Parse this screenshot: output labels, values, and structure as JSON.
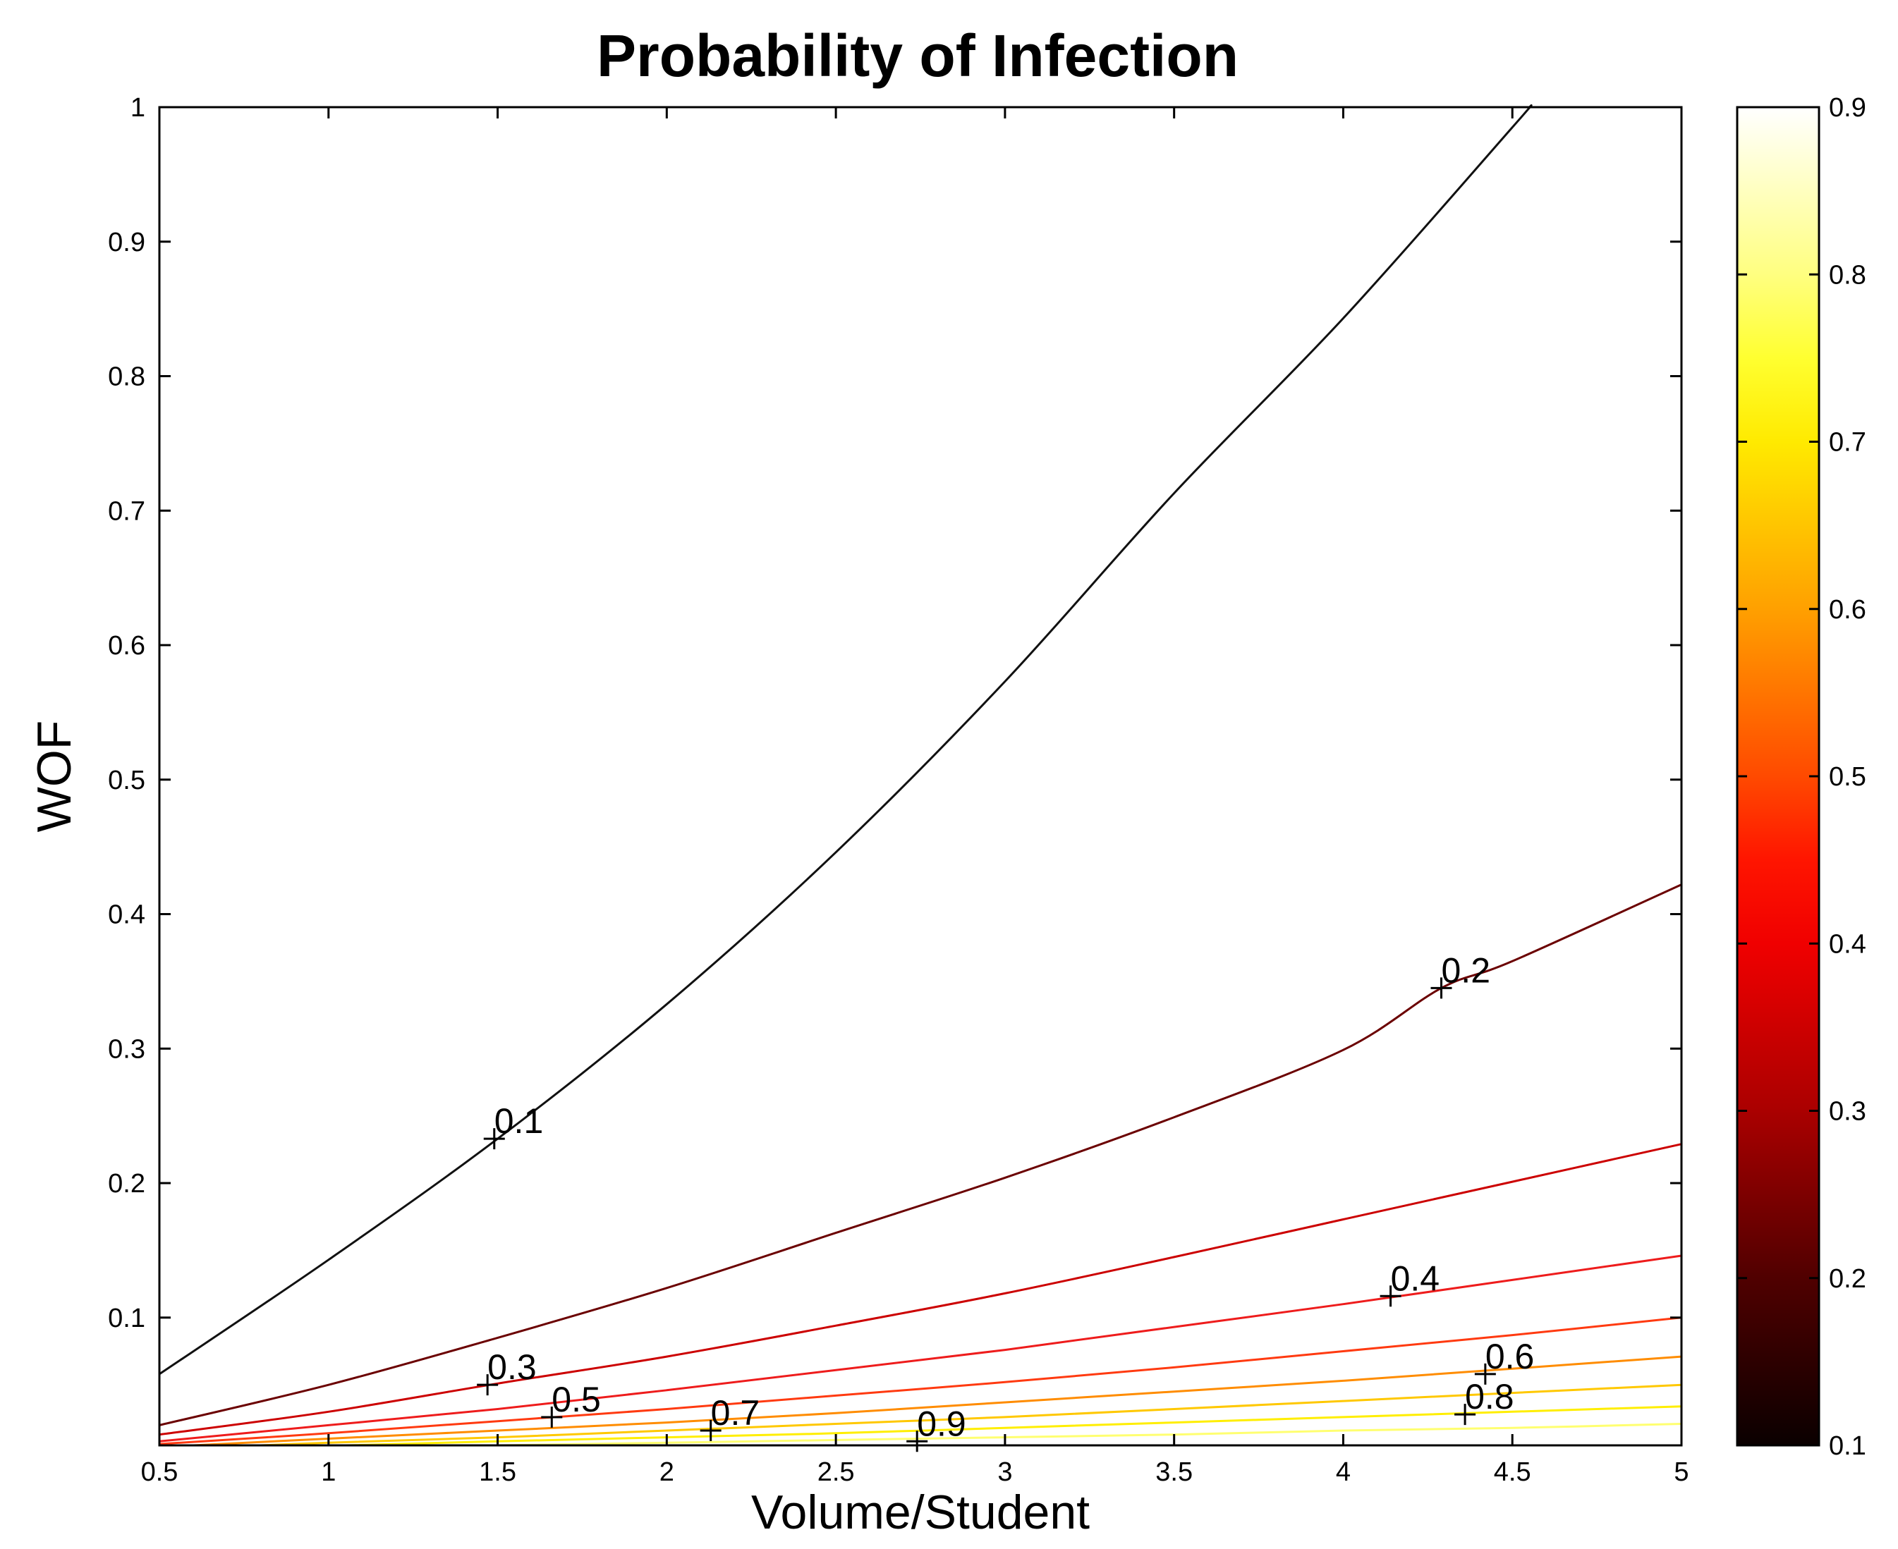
{
  "chart_data": {
    "type": "contour",
    "title": "Probability of Infection",
    "xlabel": "Volume/Student",
    "ylabel": "WOF",
    "xlim": [
      0.5,
      5
    ],
    "ylim": [
      0.005,
      1
    ],
    "grid": false,
    "x_ticks": [
      0.5,
      1,
      1.5,
      2,
      2.5,
      3,
      3.5,
      4,
      4.5,
      5
    ],
    "x_tick_labels": [
      "0.5",
      "1",
      "1.5",
      "2",
      "2.5",
      "3",
      "3.5",
      "4",
      "4.5",
      "5"
    ],
    "y_ticks": [
      0.1,
      0.2,
      0.3,
      0.4,
      0.5,
      0.6,
      0.7,
      0.8,
      0.9,
      1
    ],
    "y_tick_labels": [
      "0.1",
      "0.2",
      "0.3",
      "0.4",
      "0.5",
      "0.6",
      "0.7",
      "0.8",
      "0.9",
      "1"
    ],
    "colorbar": {
      "colormap": "hot",
      "range": [
        0.1,
        0.9
      ],
      "ticks": [
        0.1,
        0.2,
        0.3,
        0.4,
        0.5,
        0.6,
        0.7,
        0.8,
        0.9
      ],
      "tick_labels": [
        "0.1",
        "0.2",
        "0.3",
        "0.4",
        "0.5",
        "0.6",
        "0.7",
        "0.8",
        "0.9"
      ],
      "stops": [
        {
          "value": 0.1,
          "color": "#0a0000"
        },
        {
          "value": 0.2,
          "color": "#500000"
        },
        {
          "value": 0.3,
          "color": "#aa0000"
        },
        {
          "value": 0.4,
          "color": "#f00000"
        },
        {
          "value": 0.45,
          "color": "#ff1500"
        },
        {
          "value": 0.5,
          "color": "#ff4a00"
        },
        {
          "value": 0.6,
          "color": "#ffa000"
        },
        {
          "value": 0.7,
          "color": "#ffea00"
        },
        {
          "value": 0.75,
          "color": "#ffff30"
        },
        {
          "value": 0.8,
          "color": "#ffff80"
        },
        {
          "value": 0.9,
          "color": "#ffffff"
        }
      ]
    },
    "contours": [
      {
        "level": 0.1,
        "color": "#111111",
        "points": [
          [
            0.5,
            0.058
          ],
          [
            1.0,
            0.143
          ],
          [
            1.5,
            0.233
          ],
          [
            2.0,
            0.333
          ],
          [
            2.5,
            0.446
          ],
          [
            3.0,
            0.573
          ],
          [
            3.5,
            0.713
          ],
          [
            4.0,
            0.843
          ],
          [
            4.5,
            0.985
          ],
          [
            4.55,
            1.0
          ]
        ]
      },
      {
        "level": 0.2,
        "color": "#6b0000",
        "points": [
          [
            0.5,
            0.02
          ],
          [
            1.0,
            0.05
          ],
          [
            1.5,
            0.085
          ],
          [
            2.0,
            0.122
          ],
          [
            2.5,
            0.163
          ],
          [
            3.0,
            0.204
          ],
          [
            3.5,
            0.249
          ],
          [
            4.0,
            0.299
          ],
          [
            4.29,
            0.345
          ],
          [
            4.5,
            0.365
          ],
          [
            5.0,
            0.422
          ]
        ]
      },
      {
        "level": 0.3,
        "color": "#cc0000",
        "points": [
          [
            0.5,
            0.013
          ],
          [
            1.0,
            0.03
          ],
          [
            1.5,
            0.051
          ],
          [
            2.0,
            0.071
          ],
          [
            2.5,
            0.094
          ],
          [
            3.0,
            0.118
          ],
          [
            3.5,
            0.145
          ],
          [
            4.0,
            0.173
          ],
          [
            4.5,
            0.201
          ],
          [
            5.0,
            0.229
          ]
        ]
      },
      {
        "level": 0.4,
        "color": "#ee1c1c",
        "points": [
          [
            0.5,
            0.008
          ],
          [
            1.0,
            0.02
          ],
          [
            1.5,
            0.032
          ],
          [
            2.0,
            0.046
          ],
          [
            2.5,
            0.061
          ],
          [
            3.0,
            0.076
          ],
          [
            3.5,
            0.093
          ],
          [
            4.0,
            0.11
          ],
          [
            4.5,
            0.128
          ],
          [
            5.0,
            0.146
          ]
        ]
      },
      {
        "level": 0.5,
        "color": "#ff3a10",
        "points": [
          [
            0.5,
            0.006
          ],
          [
            1.0,
            0.014
          ],
          [
            1.5,
            0.023
          ],
          [
            2.0,
            0.032
          ],
          [
            2.5,
            0.042
          ],
          [
            3.0,
            0.052
          ],
          [
            3.5,
            0.063
          ],
          [
            4.0,
            0.075
          ],
          [
            4.5,
            0.087
          ],
          [
            5.0,
            0.1
          ]
        ]
      },
      {
        "level": 0.6,
        "color": "#ff8c00",
        "points": [
          [
            0.6,
            0.005
          ],
          [
            1.0,
            0.01
          ],
          [
            1.5,
            0.016
          ],
          [
            2.0,
            0.022
          ],
          [
            2.5,
            0.029
          ],
          [
            3.0,
            0.037
          ],
          [
            3.5,
            0.045
          ],
          [
            4.0,
            0.053
          ],
          [
            4.5,
            0.062
          ],
          [
            5.0,
            0.071
          ]
        ]
      },
      {
        "level": 0.7,
        "color": "#ffc800",
        "points": [
          [
            0.8,
            0.005
          ],
          [
            1.0,
            0.007
          ],
          [
            1.5,
            0.011
          ],
          [
            2.0,
            0.016
          ],
          [
            2.5,
            0.021
          ],
          [
            3.0,
            0.026
          ],
          [
            3.5,
            0.032
          ],
          [
            4.0,
            0.038
          ],
          [
            4.5,
            0.044
          ],
          [
            5.0,
            0.05
          ]
        ]
      },
      {
        "level": 0.8,
        "color": "#ffee00",
        "points": [
          [
            1.05,
            0.005
          ],
          [
            1.5,
            0.008
          ],
          [
            2.0,
            0.011
          ],
          [
            2.5,
            0.014
          ],
          [
            3.0,
            0.018
          ],
          [
            3.5,
            0.022
          ],
          [
            4.0,
            0.026
          ],
          [
            4.5,
            0.03
          ],
          [
            5.0,
            0.034
          ]
        ]
      },
      {
        "level": 0.9,
        "color": "#ffff70",
        "points": [
          [
            1.5,
            0.005
          ],
          [
            2.0,
            0.007
          ],
          [
            2.5,
            0.009
          ],
          [
            3.0,
            0.011
          ],
          [
            3.5,
            0.013
          ],
          [
            4.0,
            0.016
          ],
          [
            4.5,
            0.018
          ],
          [
            5.0,
            0.021
          ]
        ]
      }
    ],
    "contour_labels": [
      {
        "text": "0.1",
        "x": 1.49,
        "y": 0.233
      },
      {
        "text": "0.2",
        "x": 4.29,
        "y": 0.345
      },
      {
        "text": "0.3",
        "x": 1.47,
        "y": 0.05
      },
      {
        "text": "0.4",
        "x": 4.14,
        "y": 0.116
      },
      {
        "text": "0.5",
        "x": 1.66,
        "y": 0.026
      },
      {
        "text": "0.6",
        "x": 4.42,
        "y": 0.058
      },
      {
        "text": "0.7",
        "x": 2.13,
        "y": 0.016
      },
      {
        "text": "0.8",
        "x": 4.36,
        "y": 0.028
      },
      {
        "text": "0.9",
        "x": 2.74,
        "y": 0.008
      }
    ]
  }
}
